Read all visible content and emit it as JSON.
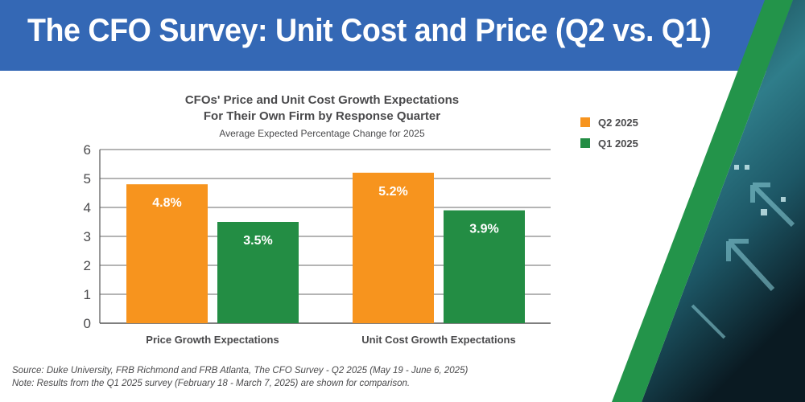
{
  "header": {
    "title": "The CFO Survey: Unit Cost and Price (Q2 vs. Q1)"
  },
  "colors": {
    "header_blue": "#3468b5",
    "accent_green": "#23944a",
    "q2_orange": "#f7941e",
    "q1_green": "#238d44",
    "text_gray": "#4a4a4c"
  },
  "chart_data": {
    "type": "bar",
    "title_line1": "CFOs' Price and Unit Cost Growth Expectations",
    "title_line2": "For Their Own Firm by Response Quarter",
    "subtitle": "Average Expected Percentage Change for 2025",
    "categories": [
      "Price Growth Expectations",
      "Unit Cost Growth Expectations"
    ],
    "series": [
      {
        "name": "Q2 2025",
        "values": [
          4.8,
          5.2
        ],
        "labels": [
          "4.8%",
          "5.2%"
        ],
        "color": "#f7941e"
      },
      {
        "name": "Q1 2025",
        "values": [
          3.5,
          3.9
        ],
        "labels": [
          "3.5%",
          "3.9%"
        ],
        "color": "#238d44"
      }
    ],
    "ylim": [
      0,
      6
    ],
    "yticks": [
      0,
      1,
      2,
      3,
      4,
      5,
      6
    ],
    "xlabel": "",
    "ylabel": "",
    "grid": true,
    "legend_position": "right"
  },
  "footer": {
    "source": "Source: Duke University, FRB Richmond and FRB Atlanta, The CFO Survey - Q2 2025 (May 19 - June 6, 2025)",
    "note": "Note: Results from the Q1 2025 survey (February 18 - March 7, 2025) are shown for comparison."
  }
}
